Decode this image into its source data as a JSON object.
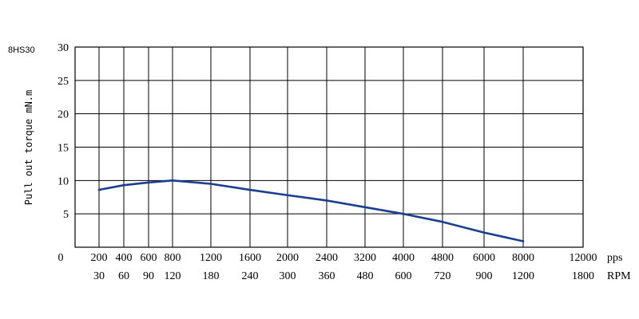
{
  "chart_data": {
    "type": "line",
    "model_label": "8HS30",
    "ylabel": "Pull out torque mN.m",
    "y_ticks": [
      "30",
      "25",
      "20",
      "15",
      "10",
      "5"
    ],
    "origin_label": "0",
    "ylim": [
      0,
      30
    ],
    "grid": true,
    "x_categories_pps": [
      "200",
      "400",
      "600",
      "800",
      "1200",
      "1600",
      "2000",
      "2400",
      "3200",
      "4000",
      "4800",
      "6000",
      "8000",
      "12000"
    ],
    "x_categories_rpm": [
      "30",
      "60",
      "90",
      "120",
      "180",
      "240",
      "300",
      "360",
      "480",
      "600",
      "720",
      "900",
      "1200",
      "1800"
    ],
    "x_unit_pps": "pps",
    "x_unit_rpm": "RPM",
    "series": [
      {
        "color": "#1a3f8f",
        "x_pps": [
          200,
          400,
          600,
          800,
          1200,
          1600,
          2000,
          2400,
          3200,
          4000,
          4800,
          6000,
          8000
        ],
        "values": [
          8.6,
          9.3,
          9.7,
          10.0,
          9.5,
          8.6,
          7.8,
          7.0,
          6.0,
          5.0,
          3.8,
          2.2,
          0.9
        ]
      }
    ]
  }
}
